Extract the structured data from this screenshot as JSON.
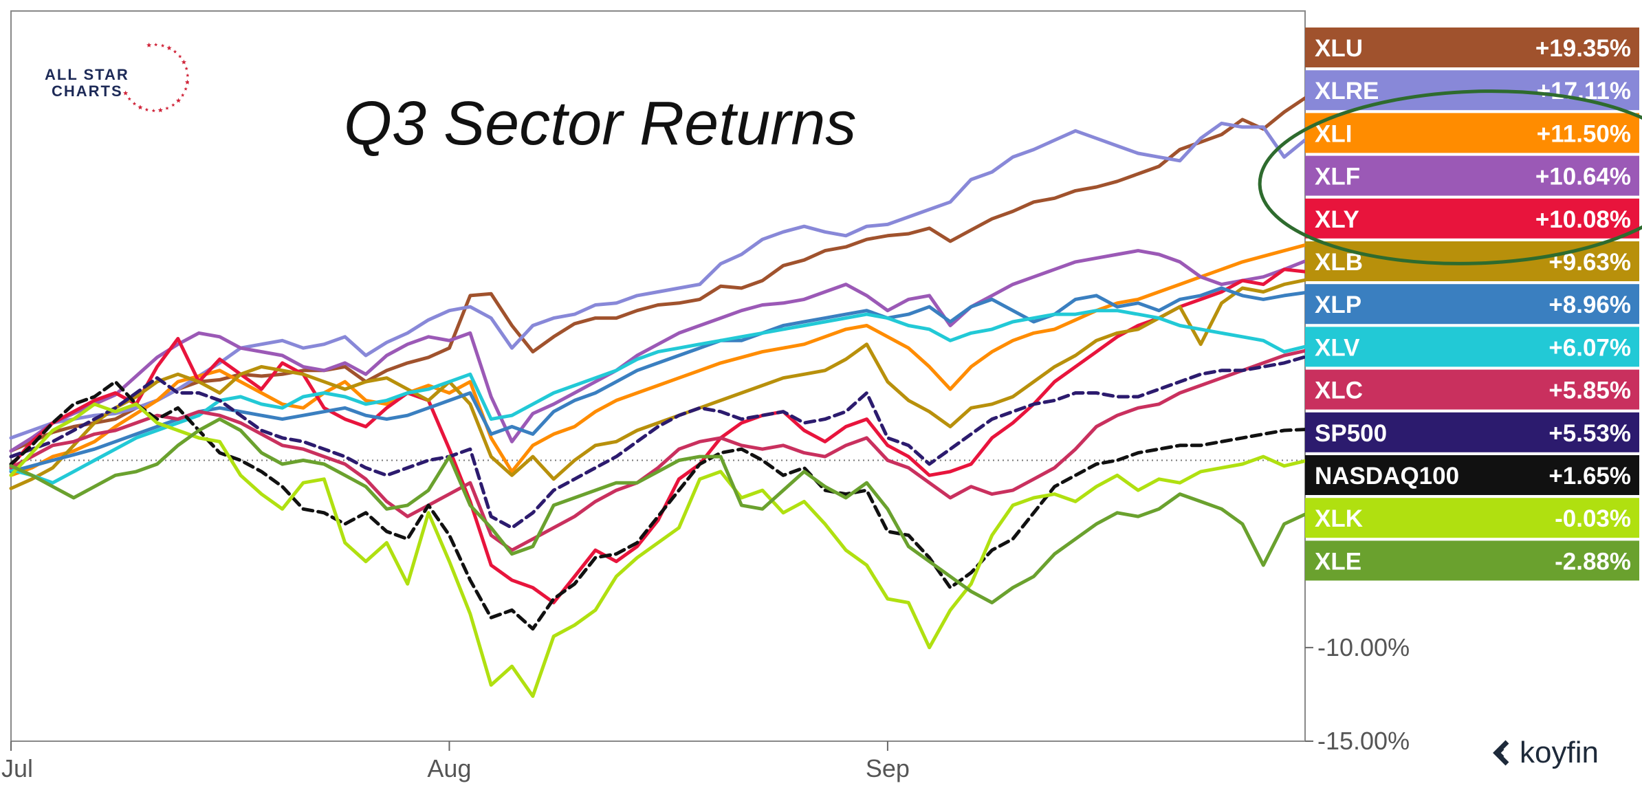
{
  "chart_data": {
    "type": "line",
    "title": "Q3 Sector Returns",
    "x_ticks": [
      "Jul",
      "Aug",
      "Sep"
    ],
    "y_ticks": [
      {
        "value": -10,
        "label": "-10.00%"
      },
      {
        "value": -15,
        "label": "-15.00%"
      }
    ],
    "ylim": [
      -15,
      24
    ],
    "x_range": [
      0,
      62
    ],
    "x_tick_index": {
      "Jul": 0,
      "Aug": 21,
      "Sep": 42
    },
    "baseline": 0,
    "legend_position": "right",
    "series": [
      {
        "name": "XLU",
        "final_label": "+19.35%",
        "color": "#a0522d",
        "values": [
          0.5,
          1.0,
          1.5,
          1.8,
          2.0,
          2.2,
          2.8,
          3.2,
          3.8,
          4.2,
          4.3,
          4.6,
          4.5,
          4.6,
          4.8,
          4.8,
          5.0,
          4.2,
          4.8,
          5.2,
          5.5,
          6.0,
          8.8,
          8.9,
          7.2,
          5.8,
          6.6,
          7.3,
          7.6,
          7.6,
          8.0,
          8.3,
          8.4,
          8.6,
          9.3,
          9.2,
          9.6,
          10.4,
          10.7,
          11.2,
          11.4,
          11.8,
          12.0,
          12.1,
          12.4,
          11.7,
          12.3,
          12.9,
          13.3,
          13.8,
          14.0,
          14.4,
          14.6,
          14.9,
          15.3,
          15.7,
          16.6,
          17.0,
          17.4,
          18.2,
          17.7,
          18.6,
          19.35
        ]
      },
      {
        "name": "XLRE",
        "final_label": "+17.11%",
        "color": "#8888d8",
        "values": [
          1.2,
          1.6,
          2.0,
          2.2,
          2.4,
          2.5,
          2.8,
          3.2,
          3.8,
          4.5,
          5.2,
          6.0,
          6.2,
          6.4,
          6.0,
          6.2,
          6.6,
          5.6,
          6.3,
          6.8,
          7.5,
          8.0,
          8.2,
          7.6,
          6.0,
          7.2,
          7.6,
          7.8,
          8.3,
          8.4,
          8.8,
          9.0,
          9.2,
          9.4,
          10.5,
          11.0,
          11.8,
          12.2,
          12.5,
          12.2,
          12.0,
          12.5,
          12.6,
          13.0,
          13.4,
          13.8,
          15.0,
          15.4,
          16.2,
          16.6,
          17.1,
          17.6,
          17.2,
          16.8,
          16.4,
          16.2,
          16.0,
          17.2,
          18.0,
          17.8,
          17.8,
          16.2,
          17.11
        ]
      },
      {
        "name": "XLI",
        "final_label": "+11.50%",
        "color": "#ff8c00",
        "values": [
          -0.8,
          -0.4,
          0.2,
          0.5,
          1.0,
          1.8,
          2.5,
          3.2,
          4.2,
          4.5,
          4.8,
          4.2,
          3.6,
          3.0,
          2.8,
          3.6,
          4.2,
          3.2,
          3.0,
          3.6,
          4.0,
          3.6,
          4.2,
          1.2,
          -0.6,
          0.8,
          1.4,
          1.8,
          2.6,
          3.2,
          3.6,
          4.0,
          4.4,
          4.8,
          5.2,
          5.5,
          5.8,
          6.0,
          6.2,
          6.6,
          7.0,
          7.2,
          6.6,
          6.0,
          5.0,
          3.8,
          5.0,
          5.8,
          6.4,
          6.8,
          7.0,
          7.5,
          8.0,
          8.4,
          8.6,
          9.0,
          9.4,
          9.8,
          10.2,
          10.6,
          10.9,
          11.2,
          11.5
        ]
      },
      {
        "name": "XLF",
        "final_label": "+10.64%",
        "color": "#9b59b6",
        "values": [
          0.5,
          1.2,
          2.0,
          2.5,
          3.0,
          3.5,
          4.5,
          5.5,
          6.2,
          6.8,
          6.6,
          6.0,
          5.8,
          5.6,
          5.0,
          4.8,
          5.2,
          4.6,
          5.6,
          6.2,
          6.6,
          6.4,
          6.8,
          3.4,
          1.0,
          2.5,
          3.0,
          3.6,
          4.2,
          4.8,
          5.6,
          6.2,
          6.8,
          7.2,
          7.6,
          8.0,
          8.3,
          8.4,
          8.6,
          9.0,
          9.4,
          8.8,
          8.0,
          8.6,
          8.8,
          7.2,
          8.2,
          8.8,
          9.4,
          9.8,
          10.2,
          10.6,
          10.8,
          11.0,
          11.2,
          11.0,
          10.6,
          9.8,
          9.4,
          9.6,
          9.8,
          10.2,
          10.64
        ]
      },
      {
        "name": "XLY",
        "final_label": "+10.08%",
        "color": "#e8143c",
        "values": [
          -0.3,
          1.0,
          2.0,
          2.6,
          3.2,
          3.6,
          3.0,
          5.0,
          6.5,
          4.2,
          5.4,
          4.6,
          3.8,
          5.2,
          4.6,
          2.8,
          2.2,
          1.8,
          2.8,
          3.6,
          3.2,
          0.6,
          -2.2,
          -5.6,
          -6.4,
          -6.8,
          -7.6,
          -6.2,
          -4.8,
          -5.4,
          -4.6,
          -3.2,
          -1.0,
          -0.2,
          1.2,
          2.0,
          2.4,
          2.6,
          1.6,
          1.0,
          1.8,
          2.2,
          0.8,
          0.2,
          -0.8,
          -0.6,
          -0.2,
          1.2,
          2.0,
          3.0,
          4.2,
          5.0,
          5.8,
          6.6,
          7.2,
          7.6,
          8.2,
          8.6,
          9.0,
          9.6,
          9.4,
          10.2,
          10.08
        ]
      },
      {
        "name": "XLB",
        "final_label": "+9.63%",
        "color": "#b8900b",
        "values": [
          -1.5,
          -1.0,
          -0.4,
          0.8,
          2.0,
          2.8,
          3.4,
          4.2,
          4.6,
          4.2,
          3.6,
          4.6,
          5.0,
          4.8,
          4.6,
          4.2,
          3.8,
          4.2,
          4.4,
          3.8,
          3.2,
          4.2,
          3.0,
          0.2,
          -0.8,
          0.2,
          -1.0,
          0.0,
          0.8,
          1.0,
          1.6,
          2.0,
          2.4,
          2.8,
          3.2,
          3.6,
          4.0,
          4.4,
          4.6,
          4.8,
          5.4,
          6.2,
          4.2,
          3.2,
          2.6,
          1.8,
          2.8,
          3.0,
          3.4,
          4.2,
          5.0,
          5.6,
          6.4,
          6.8,
          7.0,
          7.6,
          8.2,
          6.2,
          8.4,
          9.2,
          9.0,
          9.4,
          9.63
        ]
      },
      {
        "name": "XLP",
        "final_label": "+8.96%",
        "color": "#3a7fc0",
        "values": [
          -0.6,
          -0.3,
          0.0,
          0.3,
          0.6,
          1.0,
          1.4,
          1.8,
          2.2,
          2.6,
          2.8,
          2.6,
          2.4,
          2.2,
          2.4,
          2.6,
          2.8,
          2.4,
          2.2,
          2.4,
          2.8,
          3.2,
          3.6,
          1.4,
          1.8,
          1.4,
          2.6,
          3.2,
          3.6,
          4.2,
          4.8,
          5.2,
          5.6,
          6.0,
          6.4,
          6.4,
          6.8,
          7.2,
          7.4,
          7.6,
          7.8,
          8.0,
          7.6,
          7.8,
          8.2,
          7.4,
          8.2,
          8.6,
          8.0,
          7.4,
          7.8,
          8.6,
          8.8,
          8.2,
          8.4,
          8.0,
          8.6,
          8.8,
          9.2,
          8.8,
          8.6,
          8.8,
          8.96
        ]
      },
      {
        "name": "XLV",
        "final_label": "+6.07%",
        "color": "#22c9d6",
        "values": [
          -0.5,
          -0.8,
          -1.2,
          -0.6,
          0.0,
          0.6,
          1.2,
          1.6,
          2.0,
          2.4,
          3.2,
          3.4,
          3.0,
          2.8,
          3.4,
          3.6,
          3.4,
          3.0,
          3.2,
          3.6,
          3.8,
          4.2,
          4.6,
          2.2,
          2.4,
          3.0,
          3.6,
          4.0,
          4.4,
          4.8,
          5.4,
          5.8,
          6.0,
          6.2,
          6.4,
          6.6,
          6.8,
          7.0,
          7.2,
          7.4,
          7.6,
          7.8,
          7.6,
          7.2,
          7.0,
          6.4,
          6.8,
          7.0,
          7.4,
          7.6,
          7.8,
          7.8,
          8.0,
          8.0,
          7.8,
          7.6,
          7.2,
          7.0,
          6.8,
          6.6,
          6.4,
          5.8,
          6.07
        ]
      },
      {
        "name": "XLC",
        "final_label": "+5.85%",
        "color": "#c9305e",
        "values": [
          -0.4,
          0.2,
          0.8,
          1.0,
          1.4,
          1.6,
          2.0,
          2.4,
          2.2,
          2.6,
          2.4,
          2.0,
          1.4,
          0.8,
          0.6,
          0.2,
          -0.2,
          -1.0,
          -2.2,
          -3.0,
          -2.4,
          -1.8,
          -1.2,
          -4.0,
          -4.8,
          -4.2,
          -3.6,
          -3.0,
          -2.2,
          -1.6,
          -1.2,
          -0.4,
          0.6,
          1.0,
          1.2,
          0.8,
          0.6,
          0.8,
          0.4,
          0.2,
          0.8,
          1.2,
          0.0,
          -0.4,
          -1.2,
          -2.0,
          -1.4,
          -1.8,
          -1.6,
          -1.0,
          -0.4,
          0.6,
          1.8,
          2.4,
          2.8,
          3.0,
          3.6,
          4.0,
          4.4,
          4.8,
          5.2,
          5.6,
          5.85
        ]
      },
      {
        "name": "SP500",
        "final_label": "+5.53%",
        "color": "#2c1b6e",
        "dashed": true,
        "values": [
          0.2,
          0.6,
          1.0,
          1.6,
          2.2,
          2.8,
          3.6,
          4.4,
          3.6,
          3.6,
          3.2,
          2.4,
          1.6,
          1.2,
          1.0,
          0.6,
          0.2,
          -0.4,
          -0.8,
          -0.4,
          0.0,
          0.2,
          0.6,
          -3.0,
          -3.6,
          -2.8,
          -1.6,
          -1.0,
          -0.4,
          0.2,
          1.0,
          1.8,
          2.4,
          2.8,
          2.6,
          2.2,
          2.4,
          2.6,
          2.0,
          2.2,
          2.6,
          3.6,
          1.2,
          0.8,
          -0.2,
          0.6,
          1.4,
          2.2,
          2.6,
          3.0,
          3.2,
          3.6,
          3.6,
          3.4,
          3.4,
          3.8,
          4.2,
          4.6,
          4.8,
          4.8,
          5.0,
          5.2,
          5.53
        ]
      },
      {
        "name": "NASDAQ100",
        "final_label": "+1.65%",
        "color": "#111111",
        "dashed": true,
        "values": [
          -0.2,
          0.8,
          2.0,
          3.0,
          3.4,
          4.2,
          3.0,
          2.2,
          2.8,
          1.6,
          0.4,
          0.0,
          -0.6,
          -1.4,
          -2.6,
          -2.8,
          -3.4,
          -2.8,
          -3.8,
          -4.2,
          -2.4,
          -4.0,
          -6.4,
          -8.4,
          -8.0,
          -9.0,
          -7.4,
          -6.6,
          -5.2,
          -5.0,
          -4.4,
          -3.0,
          -1.6,
          -0.2,
          0.4,
          0.6,
          0.0,
          -0.8,
          -0.4,
          -1.6,
          -1.8,
          -1.6,
          -3.8,
          -4.0,
          -5.2,
          -6.8,
          -6.0,
          -4.8,
          -4.2,
          -2.8,
          -1.4,
          -0.8,
          -0.2,
          0.0,
          0.4,
          0.6,
          0.8,
          0.8,
          1.0,
          1.2,
          1.4,
          1.6,
          1.65
        ]
      },
      {
        "name": "XLK",
        "final_label": "-0.03%",
        "color": "#b0e010",
        "values": [
          -0.8,
          0.4,
          1.6,
          2.2,
          3.0,
          2.6,
          3.0,
          2.0,
          1.6,
          1.2,
          1.0,
          -0.8,
          -1.8,
          -2.6,
          -1.2,
          -1.0,
          -4.4,
          -5.4,
          -4.4,
          -6.6,
          -2.8,
          -5.4,
          -8.2,
          -12.0,
          -11.0,
          -12.6,
          -9.4,
          -8.8,
          -8.0,
          -6.2,
          -5.2,
          -4.4,
          -3.6,
          -1.0,
          -0.6,
          -2.0,
          -1.6,
          -2.8,
          -2.2,
          -3.4,
          -4.8,
          -5.6,
          -7.4,
          -7.6,
          -10.0,
          -8.0,
          -6.6,
          -4.0,
          -2.4,
          -2.0,
          -1.8,
          -2.2,
          -1.4,
          -0.8,
          -1.6,
          -1.0,
          -1.2,
          -0.6,
          -0.4,
          -0.2,
          0.2,
          -0.3,
          -0.03
        ]
      },
      {
        "name": "XLE",
        "final_label": "-2.88%",
        "color": "#6aa12e",
        "values": [
          -0.3,
          -0.8,
          -1.4,
          -2.0,
          -1.4,
          -0.8,
          -0.6,
          -0.2,
          0.8,
          1.6,
          2.2,
          1.6,
          0.4,
          -0.2,
          0.0,
          -0.2,
          -0.8,
          -1.4,
          -2.6,
          -2.4,
          -1.6,
          0.2,
          -2.4,
          -3.6,
          -5.0,
          -4.6,
          -2.4,
          -2.0,
          -1.6,
          -1.2,
          -1.2,
          -0.6,
          0.0,
          0.2,
          0.2,
          -2.4,
          -2.6,
          -1.6,
          -0.6,
          -1.4,
          -2.0,
          -1.2,
          -2.6,
          -4.6,
          -5.4,
          -6.2,
          -7.0,
          -7.6,
          -6.8,
          -6.2,
          -5.0,
          -4.2,
          -3.4,
          -2.8,
          -3.0,
          -2.6,
          -1.8,
          -2.2,
          -2.6,
          -3.4,
          -5.6,
          -3.4,
          -2.88
        ]
      }
    ]
  },
  "brand": {
    "logo_line1": "ALL STAR",
    "logo_line2": "CHARTS",
    "watermark": "koyfin"
  }
}
